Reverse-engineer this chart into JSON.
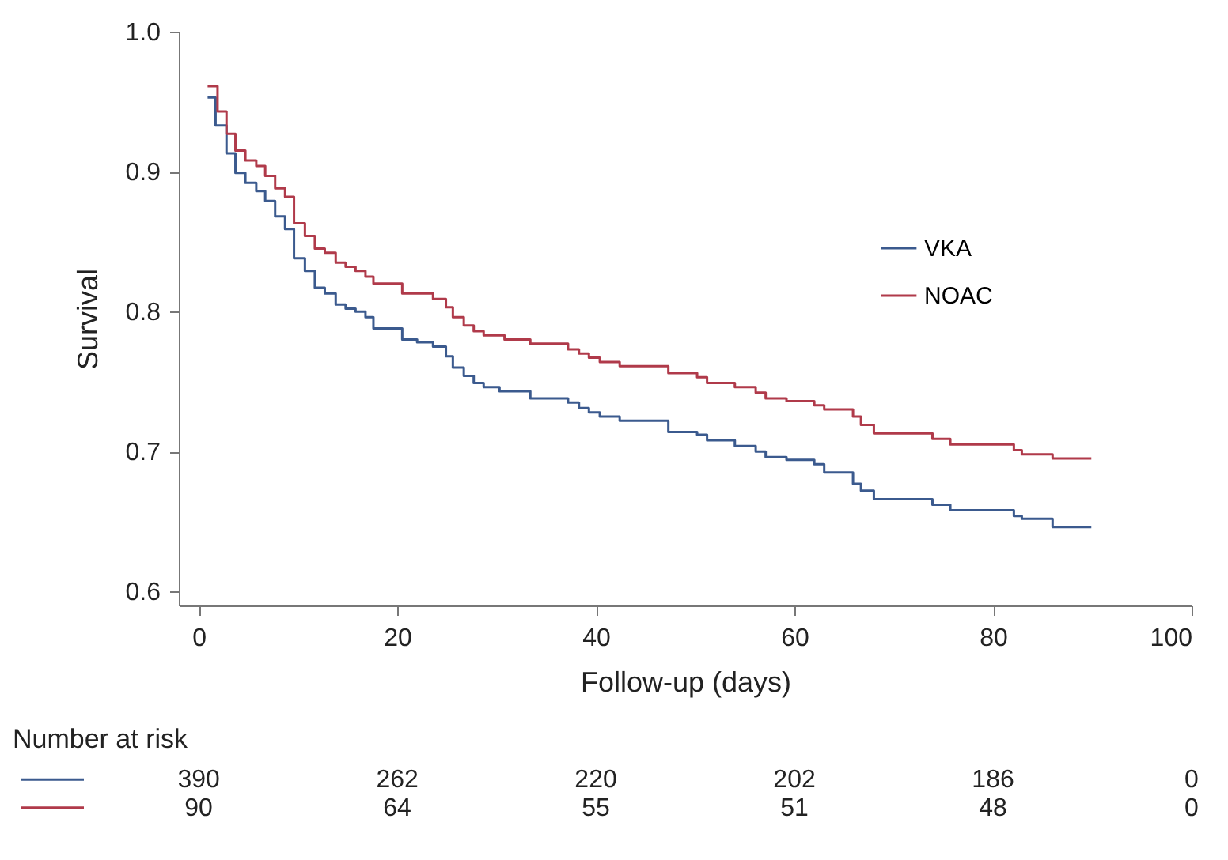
{
  "chart_data": {
    "type": "step",
    "xlabel": "Follow-up (days)",
    "ylabel": "Survival",
    "xlim": [
      -2,
      100
    ],
    "xticks": [
      0,
      20,
      40,
      60,
      80,
      100
    ],
    "ylim": [
      0.59,
      1.0
    ],
    "yticks": [
      0.6,
      0.7,
      0.8,
      0.9,
      {
        "value": 1,
        "label": "1.0"
      }
    ],
    "legend": "top right",
    "line_style": "solid",
    "series": [
      {
        "name": "VKA",
        "color": "#3b5a8e",
        "x": [
          0.9,
          1.7,
          2.8,
          3.7,
          4.7,
          5.8,
          6.7,
          7.7,
          8.7,
          9.6,
          10.7,
          11.7,
          12.7,
          13.8,
          14.8,
          15.8,
          16.8,
          17.6,
          20.5,
          22.0,
          23.6,
          24.9,
          25.6,
          26.7,
          27.7,
          28.7,
          30.3,
          33.4,
          37.2,
          38.3,
          39.3,
          40.4,
          42.4,
          47.3,
          50.2,
          51.2,
          54.0,
          56.1,
          57.1,
          59.2,
          62.0,
          63.0,
          65.9,
          66.7,
          68.0,
          73.9,
          75.7,
          82.1,
          82.9,
          86.0,
          89.9
        ],
        "values": [
          0.953,
          0.933,
          0.913,
          0.899,
          0.892,
          0.886,
          0.879,
          0.868,
          0.859,
          0.838,
          0.829,
          0.817,
          0.813,
          0.805,
          0.802,
          0.8,
          0.796,
          0.788,
          0.78,
          0.778,
          0.775,
          0.768,
          0.76,
          0.754,
          0.749,
          0.746,
          0.743,
          0.738,
          0.735,
          0.731,
          0.728,
          0.725,
          0.722,
          0.714,
          0.712,
          0.708,
          0.704,
          0.7,
          0.696,
          0.694,
          0.691,
          0.685,
          0.677,
          0.672,
          0.666,
          0.662,
          0.658,
          0.654,
          0.652,
          0.646,
          0.646
        ]
      },
      {
        "name": "NOAC",
        "color": "#b03a4a",
        "x": [
          0.9,
          1.9,
          2.8,
          3.7,
          4.7,
          5.8,
          6.7,
          7.7,
          8.7,
          9.6,
          10.7,
          11.7,
          12.7,
          13.8,
          14.8,
          15.8,
          16.8,
          17.6,
          20.5,
          23.6,
          24.9,
          25.6,
          26.7,
          27.7,
          28.7,
          30.8,
          33.4,
          37.2,
          38.3,
          39.3,
          40.4,
          42.4,
          47.3,
          50.2,
          51.2,
          54.0,
          56.1,
          57.1,
          59.2,
          62.0,
          63.0,
          65.9,
          66.7,
          68.0,
          73.9,
          75.7,
          82.1,
          82.9,
          86.0,
          89.9
        ],
        "values": [
          0.961,
          0.943,
          0.927,
          0.915,
          0.908,
          0.904,
          0.897,
          0.888,
          0.882,
          0.863,
          0.854,
          0.845,
          0.842,
          0.835,
          0.832,
          0.829,
          0.825,
          0.82,
          0.813,
          0.809,
          0.803,
          0.796,
          0.79,
          0.786,
          0.783,
          0.78,
          0.777,
          0.773,
          0.77,
          0.767,
          0.764,
          0.761,
          0.756,
          0.753,
          0.749,
          0.746,
          0.742,
          0.738,
          0.736,
          0.733,
          0.73,
          0.725,
          0.719,
          0.713,
          0.709,
          0.705,
          0.701,
          0.698,
          0.695,
          0.695
        ]
      }
    ],
    "annotations": [
      "Number at risk",
      "390",
      "262",
      "220",
      "202",
      "186",
      "0",
      "90",
      "64",
      "55",
      "51",
      "48",
      "0"
    ]
  }
}
